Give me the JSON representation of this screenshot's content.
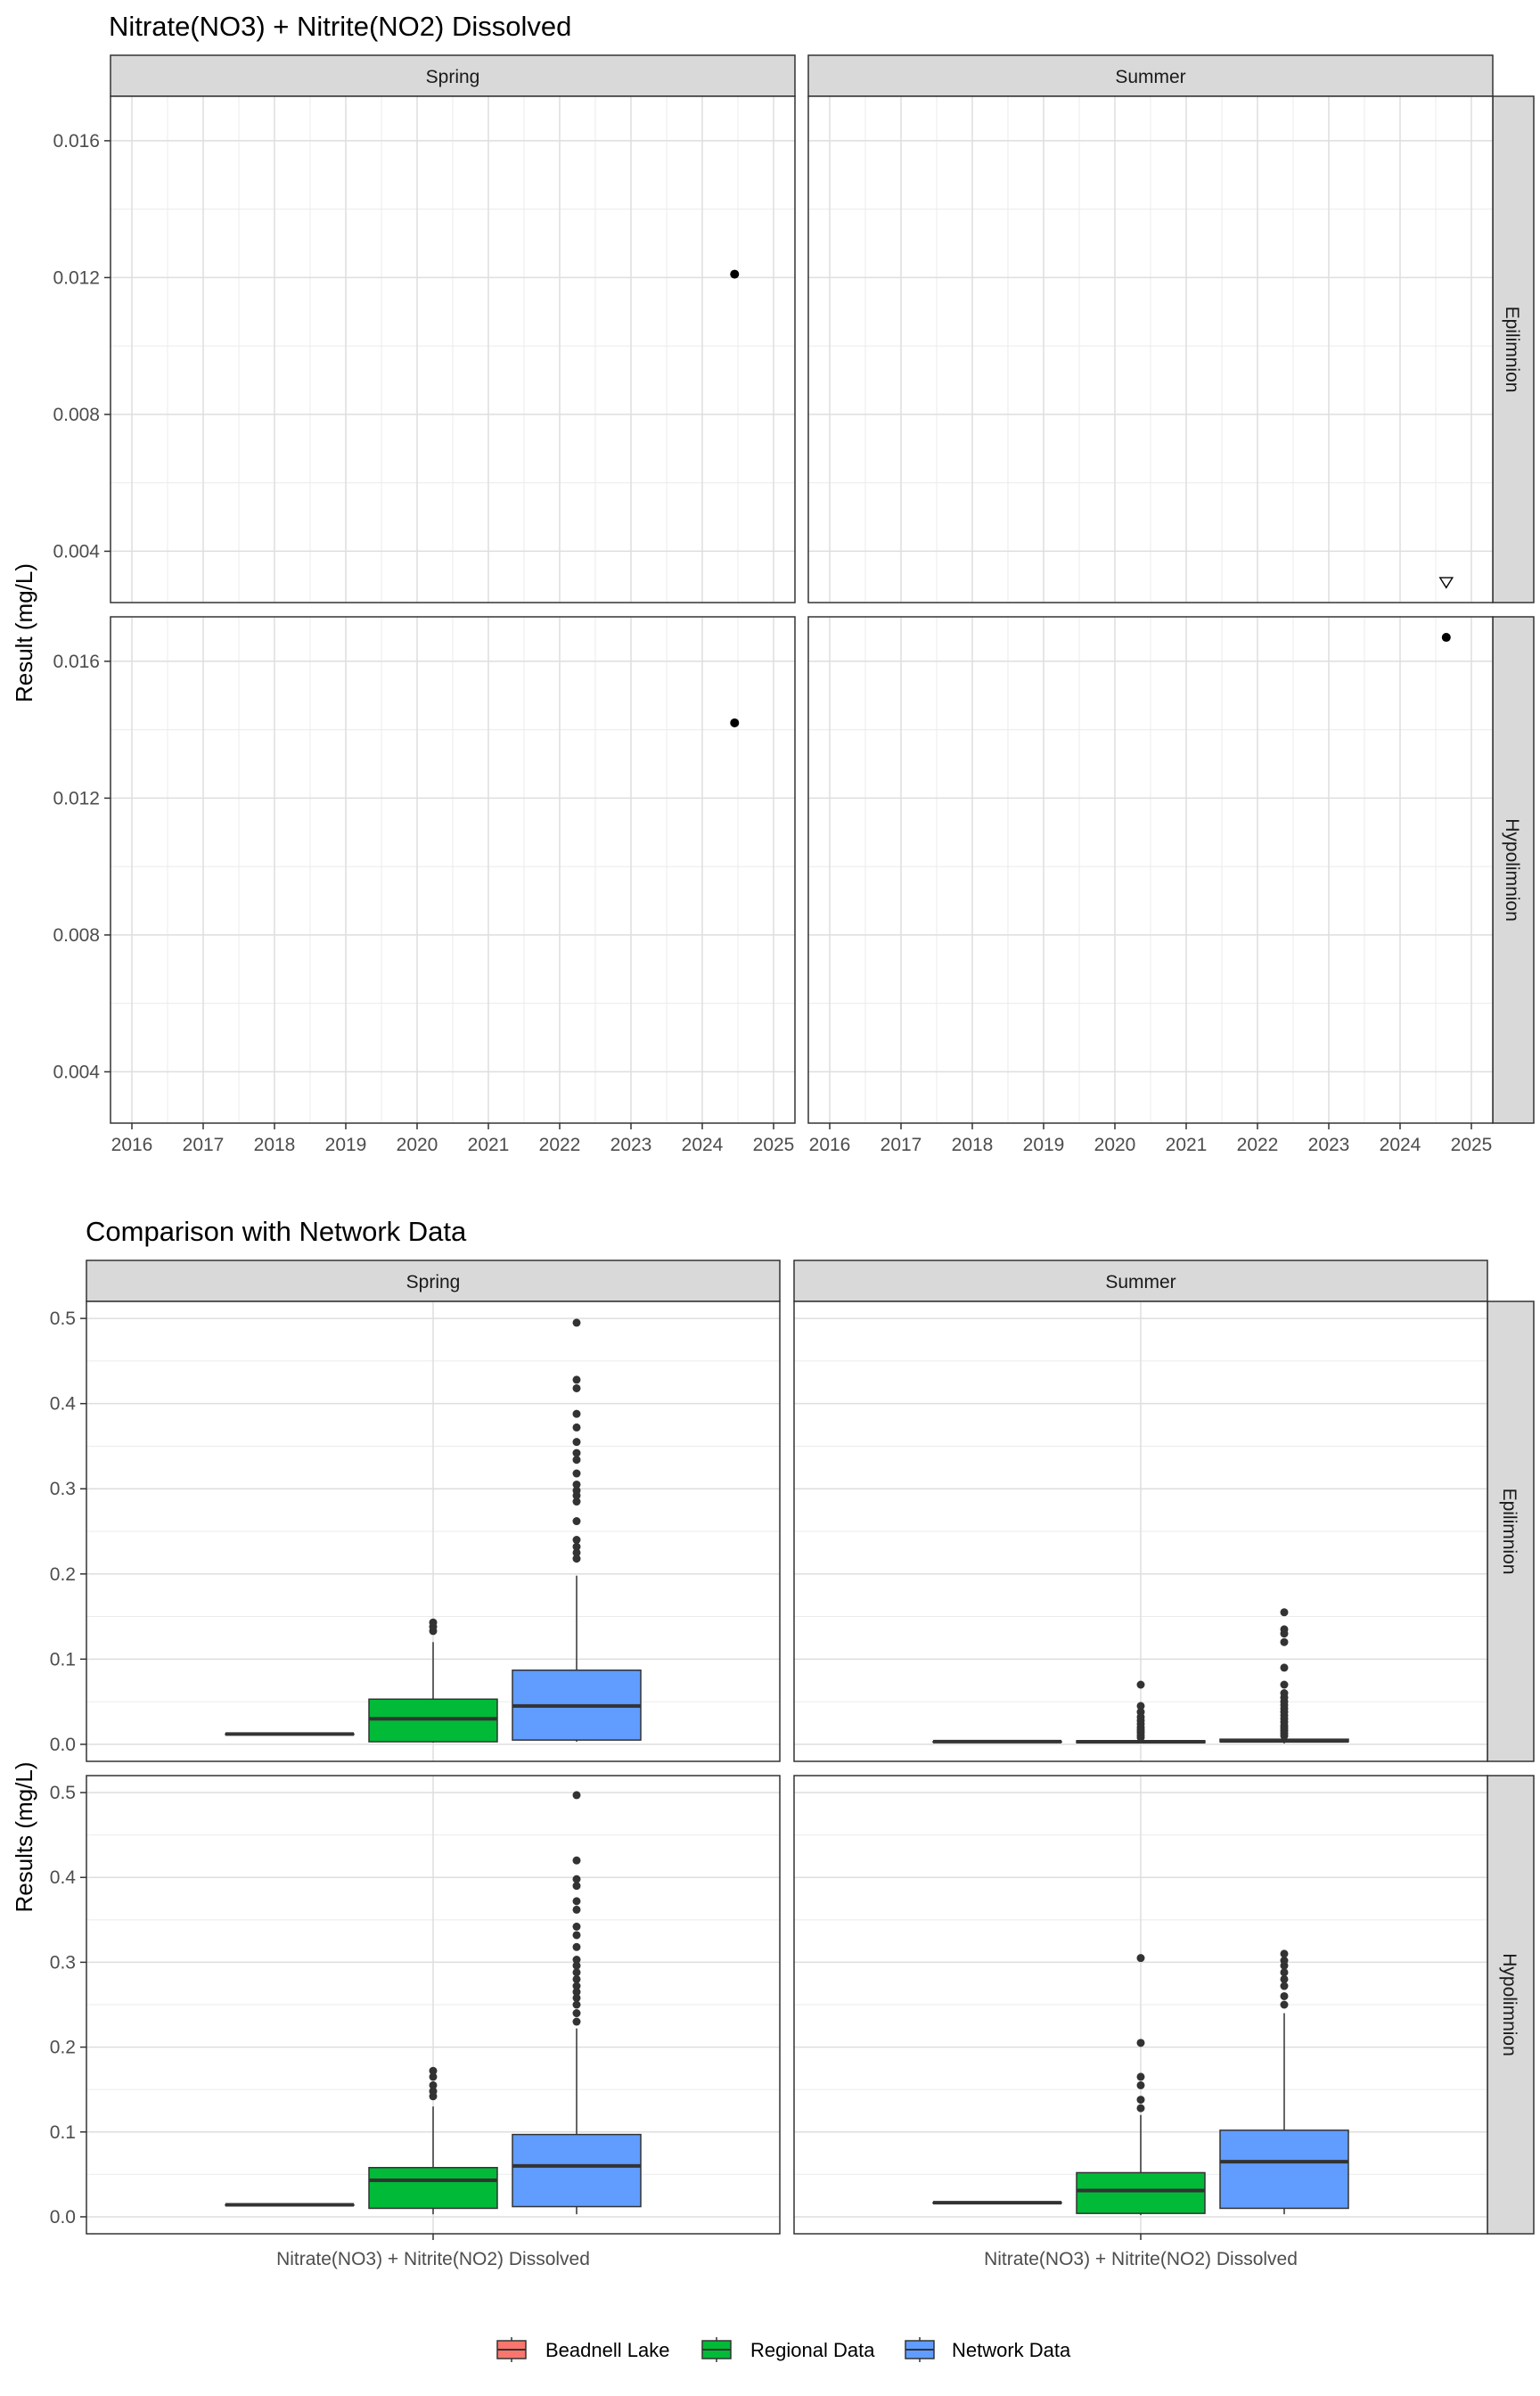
{
  "chart_data": [
    {
      "type": "scatter",
      "title": "Nitrate(NO3) + Nitrite(NO2) Dissolved",
      "ylabel": "Result (mg/L)",
      "xlabel": "",
      "col_facets": [
        "Spring",
        "Summer"
      ],
      "row_facets": [
        "Epilimnion",
        "Hypolimnion"
      ],
      "xlim": [
        2015.7,
        2025.3
      ],
      "ylim": [
        0.0025,
        0.0173
      ],
      "x_ticks": [
        "2016",
        "2017",
        "2018",
        "2019",
        "2020",
        "2021",
        "2022",
        "2023",
        "2024",
        "2025"
      ],
      "y_ticks": [
        "0.004",
        "0.008",
        "0.012",
        "0.016"
      ],
      "grid": true,
      "panels": [
        {
          "col": "Spring",
          "row": "Epilimnion",
          "points": [
            {
              "x": "2024-06-15",
              "y": 0.0121,
              "shape": "filled-circle"
            }
          ]
        },
        {
          "col": "Summer",
          "row": "Epilimnion",
          "points": [
            {
              "x": "2024-08-25",
              "y": 0.0031,
              "shape": "open-triangle-down"
            }
          ]
        },
        {
          "col": "Spring",
          "row": "Hypolimnion",
          "points": [
            {
              "x": "2024-06-15",
              "y": 0.0142,
              "shape": "filled-circle"
            }
          ]
        },
        {
          "col": "Summer",
          "row": "Hypolimnion",
          "points": [
            {
              "x": "2024-08-25",
              "y": 0.0167,
              "shape": "filled-circle"
            }
          ]
        }
      ]
    },
    {
      "type": "box",
      "title": "Comparison with Network Data",
      "ylabel": "Results (mg/L)",
      "col_facets": [
        "Spring",
        "Summer"
      ],
      "row_facets": [
        "Epilimnion",
        "Hypolimnion"
      ],
      "x_category": "Nitrate(NO3) + Nitrite(NO2) Dissolved",
      "ylim": [
        -0.02,
        0.52
      ],
      "y_ticks": [
        "0.0",
        "0.1",
        "0.2",
        "0.3",
        "0.4",
        "0.5"
      ],
      "grid": true,
      "legend_position": "bottom",
      "series": [
        {
          "name": "Beadnell Lake",
          "color": "#F8766D"
        },
        {
          "name": "Regional Data",
          "color": "#00BA38"
        },
        {
          "name": "Network Data",
          "color": "#619CFF"
        }
      ],
      "panels": [
        {
          "col": "Spring",
          "row": "Epilimnion",
          "boxes": [
            {
              "series": "Beadnell Lake",
              "min": 0.0121,
              "q1": 0.0121,
              "median": 0.0121,
              "q3": 0.0121,
              "max": 0.0121,
              "outliers": []
            },
            {
              "series": "Regional Data",
              "min": 0.002,
              "q1": 0.003,
              "median": 0.03,
              "q3": 0.053,
              "max": 0.12,
              "outliers": [
                0.133,
                0.138,
                0.143
              ]
            },
            {
              "series": "Network Data",
              "min": 0.003,
              "q1": 0.005,
              "median": 0.045,
              "q3": 0.087,
              "max": 0.198,
              "outliers": [
                0.218,
                0.225,
                0.232,
                0.24,
                0.262,
                0.285,
                0.292,
                0.298,
                0.305,
                0.318,
                0.334,
                0.342,
                0.355,
                0.372,
                0.388,
                0.418,
                0.428,
                0.495
              ]
            }
          ]
        },
        {
          "col": "Summer",
          "row": "Epilimnion",
          "boxes": [
            {
              "series": "Beadnell Lake",
              "min": 0.0031,
              "q1": 0.0031,
              "median": 0.0031,
              "q3": 0.0031,
              "max": 0.0031,
              "outliers": []
            },
            {
              "series": "Regional Data",
              "min": 0.001,
              "q1": 0.002,
              "median": 0.003,
              "q3": 0.004,
              "max": 0.005,
              "outliers": [
                0.008,
                0.011,
                0.014,
                0.017,
                0.02,
                0.024,
                0.028,
                0.032,
                0.038,
                0.045,
                0.07
              ]
            },
            {
              "series": "Network Data",
              "min": 0.001,
              "q1": 0.003,
              "median": 0.004,
              "q3": 0.006,
              "max": 0.007,
              "outliers": [
                0.01,
                0.013,
                0.016,
                0.019,
                0.022,
                0.026,
                0.03,
                0.034,
                0.038,
                0.042,
                0.046,
                0.05,
                0.055,
                0.06,
                0.07,
                0.09,
                0.12,
                0.13,
                0.135,
                0.155
              ]
            }
          ]
        },
        {
          "col": "Spring",
          "row": "Hypolimnion",
          "boxes": [
            {
              "series": "Beadnell Lake",
              "min": 0.0142,
              "q1": 0.0142,
              "median": 0.0142,
              "q3": 0.0142,
              "max": 0.0142,
              "outliers": []
            },
            {
              "series": "Regional Data",
              "min": 0.003,
              "q1": 0.01,
              "median": 0.043,
              "q3": 0.058,
              "max": 0.13,
              "outliers": [
                0.142,
                0.148,
                0.155,
                0.165,
                0.172
              ]
            },
            {
              "series": "Network Data",
              "min": 0.003,
              "q1": 0.012,
              "median": 0.06,
              "q3": 0.097,
              "max": 0.222,
              "outliers": [
                0.23,
                0.24,
                0.25,
                0.258,
                0.265,
                0.272,
                0.28,
                0.288,
                0.296,
                0.303,
                0.318,
                0.332,
                0.342,
                0.362,
                0.372,
                0.39,
                0.398,
                0.42,
                0.497
              ]
            }
          ]
        },
        {
          "col": "Summer",
          "row": "Hypolimnion",
          "boxes": [
            {
              "series": "Beadnell Lake",
              "min": 0.0167,
              "q1": 0.0167,
              "median": 0.0167,
              "q3": 0.0167,
              "max": 0.0167,
              "outliers": []
            },
            {
              "series": "Regional Data",
              "min": 0.002,
              "q1": 0.004,
              "median": 0.031,
              "q3": 0.052,
              "max": 0.12,
              "outliers": [
                0.128,
                0.138,
                0.155,
                0.165,
                0.205,
                0.305
              ]
            },
            {
              "series": "Network Data",
              "min": 0.003,
              "q1": 0.01,
              "median": 0.065,
              "q3": 0.102,
              "max": 0.24,
              "outliers": [
                0.25,
                0.26,
                0.272,
                0.28,
                0.288,
                0.296,
                0.302,
                0.31
              ]
            }
          ]
        }
      ]
    }
  ]
}
